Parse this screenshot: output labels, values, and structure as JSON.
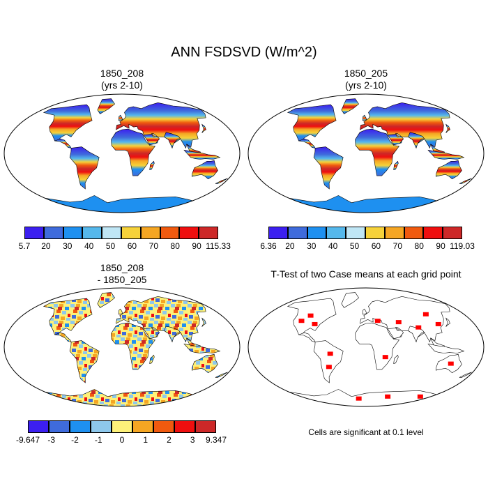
{
  "title": "ANN FSDSVD (W/m^2)",
  "panels": [
    {
      "id": "case1",
      "title_line1": "1850_208",
      "title_line2": "(yrs 2-10)",
      "colorbar": {
        "colors": [
          "#3c1ff0",
          "#3f6bdc",
          "#1e90f0",
          "#55b8ec",
          "#bfe6f5",
          "#f6d23a",
          "#f5a623",
          "#f05a0f",
          "#ef0f0f",
          "#cd2828"
        ],
        "labels": [
          "5.7",
          "20",
          "30",
          "40",
          "50",
          "60",
          "70",
          "80",
          "90",
          "115.33"
        ]
      }
    },
    {
      "id": "case2",
      "title_line1": "1850_205",
      "title_line2": "(yrs 2-10)",
      "colorbar": {
        "colors": [
          "#3c1ff0",
          "#3f6bdc",
          "#1e90f0",
          "#55b8ec",
          "#bfe6f5",
          "#f6d23a",
          "#f5a623",
          "#f05a0f",
          "#ef0f0f",
          "#cd2828"
        ],
        "labels": [
          "6.36",
          "20",
          "30",
          "40",
          "50",
          "60",
          "70",
          "80",
          "90",
          "119.03"
        ]
      }
    },
    {
      "id": "diff",
      "title_line1": "1850_208",
      "title_line2": "- 1850_205",
      "colorbar": {
        "colors": [
          "#3c1ff0",
          "#3f6bdc",
          "#1e90f0",
          "#8ec8ec",
          "#fdf17a",
          "#f5a623",
          "#f05a0f",
          "#ef0f0f",
          "#cd2828"
        ],
        "labels": [
          "-9.647",
          "-3",
          "-2",
          "-1",
          "0",
          "1",
          "2",
          "3",
          "9.347"
        ]
      }
    },
    {
      "id": "ttest",
      "title_line1": "T-Test of two Case means at each grid point",
      "note": "Cells are significant at 0.1 level",
      "colors": [
        "#ff0000"
      ]
    }
  ]
}
